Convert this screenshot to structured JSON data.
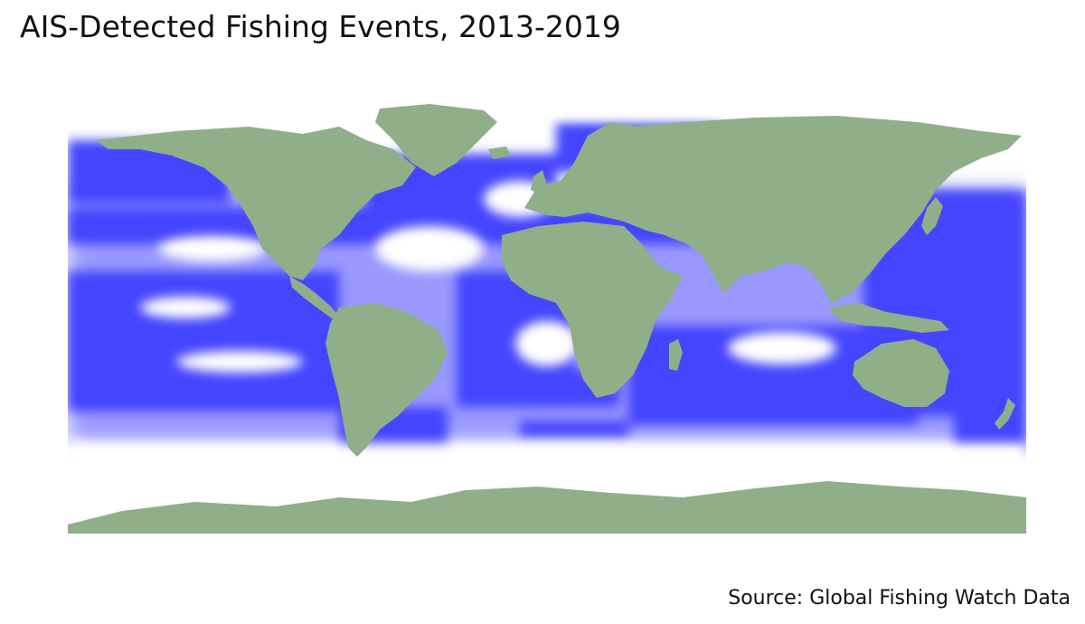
{
  "title": "AIS-Detected Fishing Events, 2013-2019",
  "caption": "Source: Global Fishing Watch Data",
  "colors": {
    "land": "#8faf88",
    "fishing": "#4444ff",
    "ocean": "#ffffff"
  }
}
